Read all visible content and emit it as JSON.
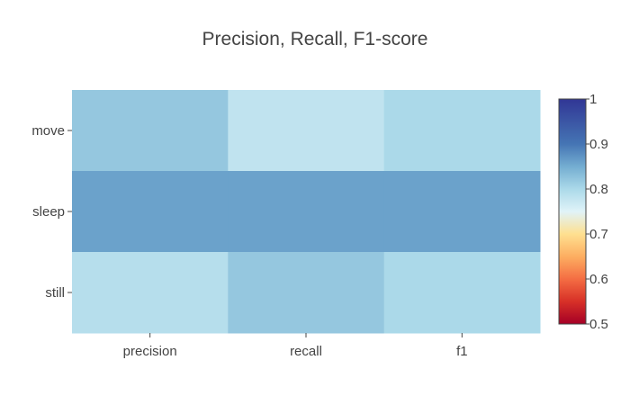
{
  "chart_data": {
    "type": "heatmap",
    "title": "Precision, Recall, F1-score",
    "xlabel": "",
    "ylabel": "",
    "x_categories": [
      "precision",
      "recall",
      "f1"
    ],
    "y_categories": [
      "move",
      "sleep",
      "still"
    ],
    "z": [
      [
        0.82,
        0.78,
        0.8
      ],
      [
        0.86,
        0.86,
        0.86
      ],
      [
        0.79,
        0.82,
        0.8
      ]
    ],
    "zmin": 0.5,
    "zmax": 1,
    "colorscale": "RdYlBu",
    "colorbar_ticks": [
      "0.5",
      "0.6",
      "0.7",
      "0.8",
      "0.9",
      "1"
    ],
    "colorscale_stops": [
      [
        0.0,
        "#a50026"
      ],
      [
        0.1,
        "#d73027"
      ],
      [
        0.2,
        "#f46d43"
      ],
      [
        0.3,
        "#fdae61"
      ],
      [
        0.4,
        "#fee090"
      ],
      [
        0.5,
        "#e0f3f8"
      ],
      [
        0.6,
        "#abd9e9"
      ],
      [
        0.7,
        "#74add1"
      ],
      [
        0.8,
        "#4575b4"
      ],
      [
        1.0,
        "#313695"
      ]
    ]
  }
}
